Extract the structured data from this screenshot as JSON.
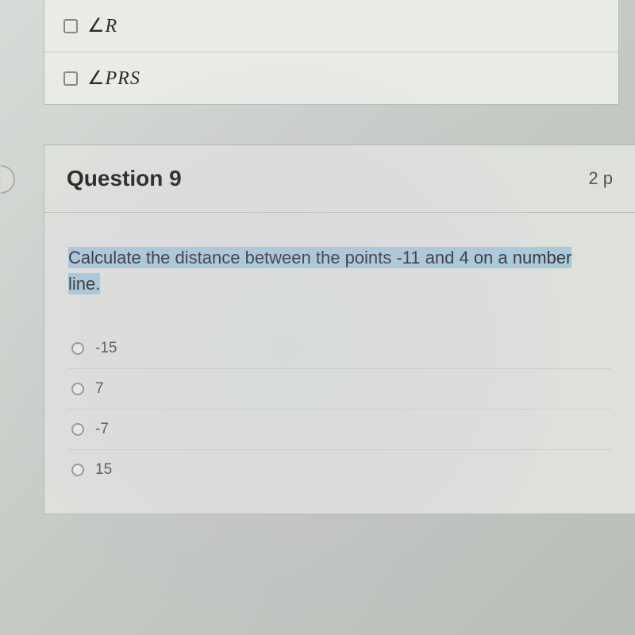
{
  "previous_question": {
    "options": [
      {
        "label_prefix": "∠",
        "label_text": "R"
      },
      {
        "label_prefix": "∠",
        "label_text": "PRS"
      }
    ]
  },
  "question": {
    "number_label": "Question 9",
    "points_label": "2 p",
    "prompt_highlighted": "Calculate the distance between the points -11 and 4 on a number",
    "prompt_rest": "line.",
    "options": [
      {
        "value": "-15"
      },
      {
        "value": "7"
      },
      {
        "value": "-7"
      },
      {
        "value": "15"
      }
    ]
  },
  "styling": {
    "background_color": "#dde0db",
    "panel_background": "#e8ebe6",
    "border_color": "#b5b8b3",
    "text_color": "#2a2a2a",
    "muted_text": "#5a5a5a",
    "highlight_color": "rgba(120,180,220,0.5)",
    "title_fontsize": 28,
    "body_fontsize": 22,
    "option_fontsize": 19,
    "math_fontsize": 24
  }
}
